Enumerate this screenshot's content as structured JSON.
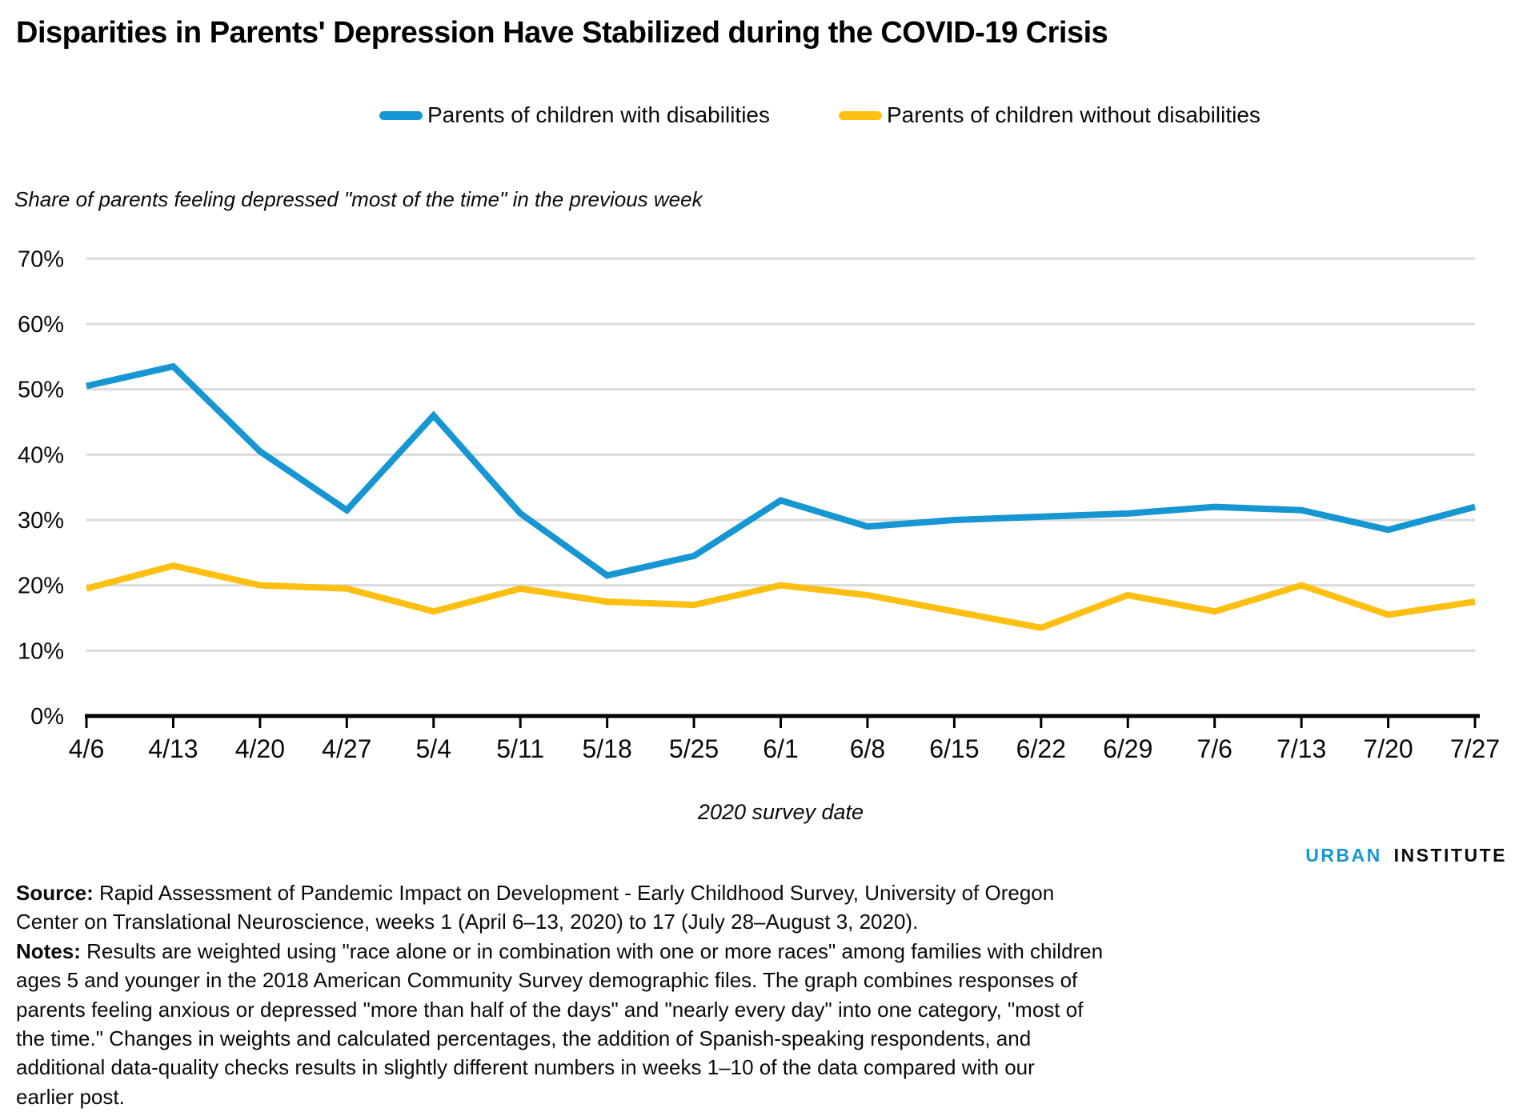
{
  "title": "Disparities in Parents' Depression Have Stabilized during the COVID-19 Crisis",
  "subtitle": "Share of parents feeling depressed \"most of the time\" in the previous week",
  "legend": [
    {
      "label": "Parents of children with disabilities",
      "color": "#1696d2"
    },
    {
      "label": "Parents of children without disabilities",
      "color": "#fdbf11"
    }
  ],
  "chart_data": {
    "type": "line",
    "title": "Disparities in Parents' Depression Have Stabilized during the COVID-19 Crisis",
    "ylabel": "Share of parents feeling depressed \"most of the time\" in the previous week",
    "xlabel": "2020 survey date",
    "categories": [
      "4/6",
      "4/13",
      "4/20",
      "4/27",
      "5/4",
      "5/11",
      "5/18",
      "5/25",
      "6/1",
      "6/8",
      "6/15",
      "6/22",
      "6/29",
      "7/6",
      "7/13",
      "7/20",
      "7/27"
    ],
    "series": [
      {
        "name": "Parents of children with disabilities",
        "color": "#1696d2",
        "values": [
          50.5,
          53.5,
          40.5,
          31.5,
          46,
          31,
          21.5,
          24.5,
          33,
          29,
          30,
          30.5,
          31,
          32,
          31.5,
          28.5,
          32
        ]
      },
      {
        "name": "Parents of children without disabilities",
        "color": "#fdbf11",
        "values": [
          19.5,
          23,
          20,
          19.5,
          16,
          19.5,
          17.5,
          17,
          20,
          18.5,
          16,
          13.5,
          18.5,
          16,
          20,
          15.5,
          17.5
        ]
      }
    ],
    "ylim": [
      0,
      70
    ],
    "ytick_step": 10,
    "ytick_suffix": "%",
    "grid": true,
    "legend_position": "top"
  },
  "xaxis_title": "2020 survey date",
  "logo": {
    "part1": "URBAN",
    "part2": "INSTITUTE",
    "urban_color": "#1696d2",
    "institute_color": "#000000"
  },
  "footer": {
    "lines": [
      {
        "bold": "Source:",
        "text": "Rapid Assessment of Pandemic Impact on Development - Early Childhood Survey, University of Oregon"
      },
      {
        "bold": "",
        "text": "Center on Translational Neuroscience, weeks 1 (April 6–13, 2020) to 17 (July 28–August 3, 2020)."
      },
      {
        "bold": "Notes:",
        "text": "Results are weighted using \"race alone or in combination with one or more races\" among families with children"
      },
      {
        "bold": "",
        "text": "ages 5 and younger in the 2018 American Community Survey demographic files. The graph combines responses of"
      },
      {
        "bold": "",
        "text": "parents feeling anxious or depressed \"more than half of the days\" and \"nearly every day\" into one category, \"most of"
      },
      {
        "bold": "",
        "text": "the time.\" Changes in weights and calculated percentages, the addition of Spanish-speaking respondents, and"
      },
      {
        "bold": "",
        "text": "additional data-quality checks results in slightly different numbers in weeks 1–10 of the data compared with our"
      },
      {
        "bold": "",
        "text": "earlier post."
      }
    ]
  },
  "colors": {
    "grid": "#dbdbdb",
    "axis": "#000000",
    "tick_text": "#0a0a0a"
  }
}
